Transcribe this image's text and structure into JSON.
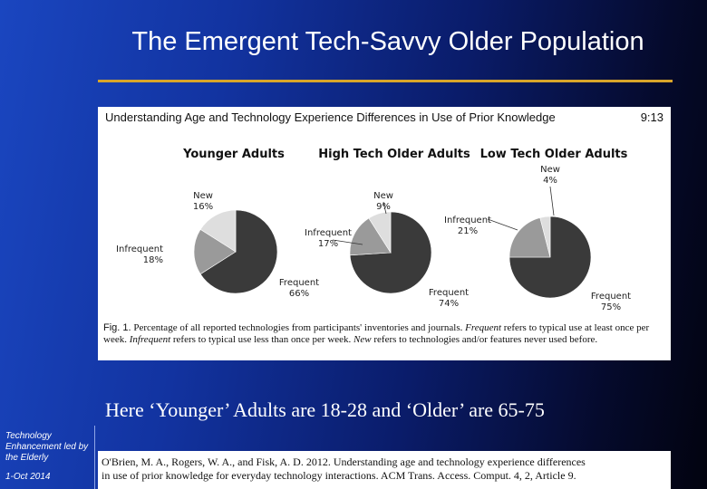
{
  "slide": {
    "title": "The Emergent Tech-Savvy Older Population",
    "note": "Here ‘Younger’ Adults are 18-28 and ‘Older’ are 65-75",
    "sidebar_label": "Technology Enhancement led by the Elderly",
    "date": "1-Oct 2014",
    "citation_line1": "O'Brien, M. A., Rogers, W. A., and Fisk, A. D. 2012. Understanding age and technology experience differences",
    "citation_line2": "in use of prior knowledge for everyday technology interactions. ACM Trans. Access. Comput. 4, 2, Article 9.",
    "accent_color": "#d8a52a"
  },
  "figure": {
    "header": "Understanding Age and Technology Experience Differences in Use of Prior Knowledge",
    "header_time": "9:13",
    "caption_label": "Fig. 1.",
    "caption_part1": "Percentage of all reported technologies from participants' inventories and journals.",
    "caption_frequent": "Frequent",
    "caption_part2": "refers to typical use at least once per week.",
    "caption_infrequent": "Infrequent",
    "caption_part3": "refers to typical use less than once per week.",
    "caption_new": "New",
    "caption_part4": "refers to technologies and/or features never used before."
  },
  "chart_data": {
    "type": "pie",
    "categories": [
      "Frequent",
      "Infrequent",
      "New"
    ],
    "colors": [
      "#3a3a3a",
      "#9a9a9a",
      "#dedede"
    ],
    "charts": [
      {
        "title": "Younger Adults",
        "values": [
          66,
          18,
          16
        ]
      },
      {
        "title": "High Tech Older Adults",
        "values": [
          74,
          17,
          9
        ]
      },
      {
        "title": "Low Tech Older Adults",
        "values": [
          75,
          21,
          4
        ]
      }
    ]
  }
}
